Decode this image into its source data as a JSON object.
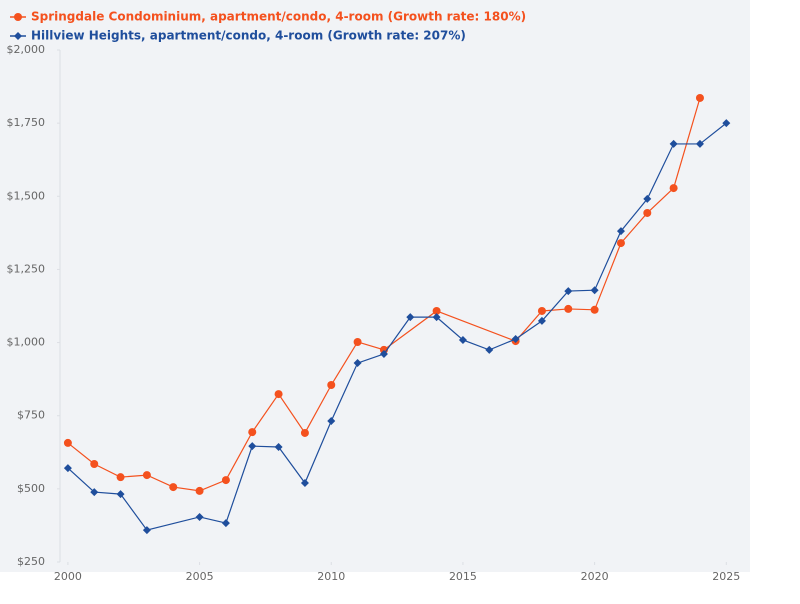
{
  "chart_data": {
    "type": "line",
    "xlim": [
      1999.7,
      2025.9
    ],
    "xticks": [
      2000,
      2005,
      2010,
      2015,
      2020,
      2025
    ],
    "ylim": [
      250,
      2000
    ],
    "yticks": [
      {
        "value": 250,
        "label": "$250"
      },
      {
        "value": 500,
        "label": "$500"
      },
      {
        "value": 750,
        "label": "$750"
      },
      {
        "value": 1000,
        "label": "$1,000"
      },
      {
        "value": 1250,
        "label": "$1,250"
      },
      {
        "value": 1500,
        "label": "$1,500"
      },
      {
        "value": 1750,
        "label": "$1,750"
      },
      {
        "value": 2000,
        "label": "$2,000"
      }
    ],
    "series": [
      {
        "name": "Springdale Condominium, apartment/condo, 4-room (Growth rate: 180%)",
        "color": "#f4511e",
        "marker": "circle",
        "x": [
          2000,
          2001,
          2002,
          2003,
          2004,
          2005,
          2006,
          2007,
          2008,
          2009,
          2010,
          2011,
          2012,
          2014,
          2017,
          2018,
          2019,
          2020,
          2021,
          2022,
          2023,
          2024
        ],
        "values": [
          657,
          585,
          540,
          547,
          506,
          493,
          530,
          694,
          824,
          691,
          855,
          1002,
          975,
          1108,
          1005,
          1108,
          1115,
          1112,
          1340,
          1443,
          1528,
          1836
        ]
      },
      {
        "name": "Hillview Heights, apartment/condo, 4-room (Growth rate: 207%)",
        "color": "#1f4e9c",
        "marker": "diamond",
        "x": [
          2000,
          2001,
          2002,
          2003,
          2005,
          2006,
          2007,
          2008,
          2009,
          2010,
          2011,
          2012,
          2013,
          2014,
          2015,
          2016,
          2017,
          2018,
          2019,
          2020,
          2021,
          2022,
          2023,
          2024,
          2025
        ],
        "values": [
          571,
          489,
          482,
          359,
          404,
          383,
          646,
          643,
          520,
          732,
          930,
          961,
          1087,
          1087,
          1009,
          975,
          1012,
          1074,
          1176,
          1179,
          1381,
          1491,
          1679,
          1679,
          1750
        ]
      }
    ]
  }
}
